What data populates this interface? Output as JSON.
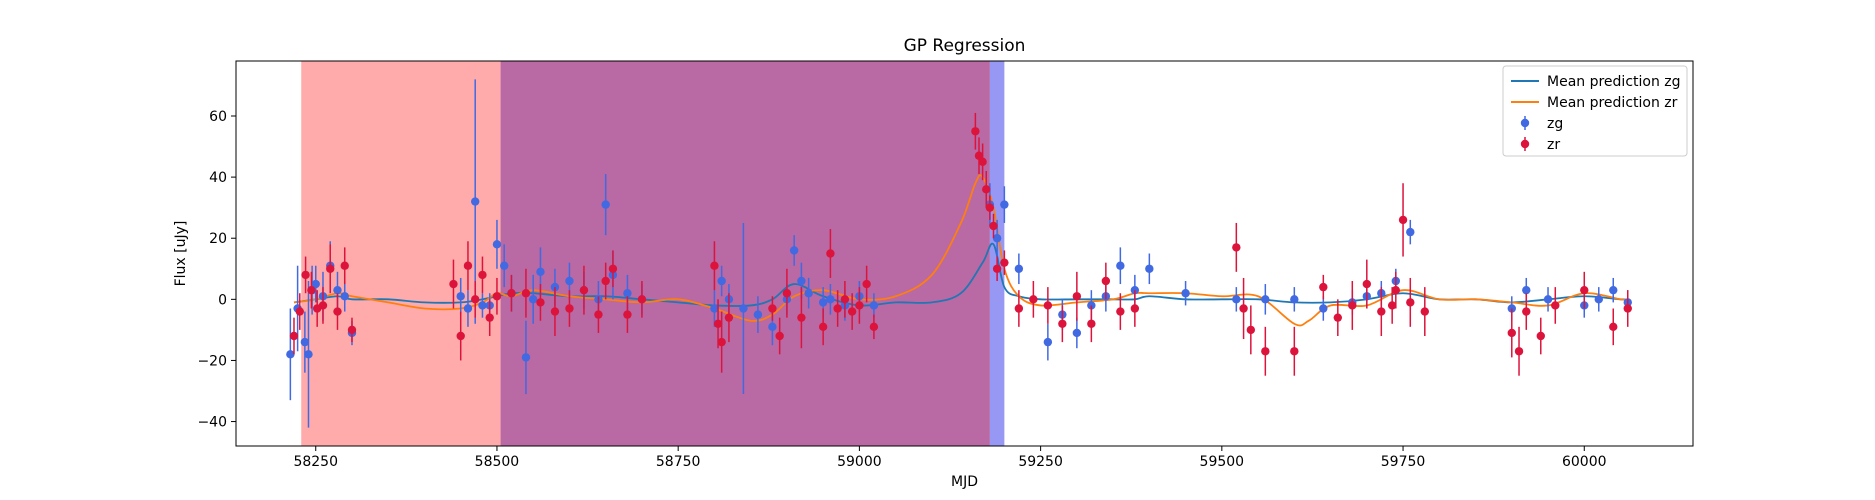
{
  "chart_data": {
    "type": "scatter",
    "title": "GP Regression",
    "xlabel": "MJD",
    "ylabel": "Flux [uJy]",
    "xlim": [
      58140,
      60150
    ],
    "ylim": [
      -48,
      78
    ],
    "xticks": [
      58250,
      58500,
      58750,
      59000,
      59250,
      59500,
      59750,
      60000
    ],
    "yticks": [
      -40,
      -20,
      0,
      20,
      40,
      60
    ],
    "grid": false,
    "legend_position": "top-right",
    "shaded_regions": [
      {
        "x": [
          58230,
          58505
        ],
        "color": "#ff6666",
        "opacity": 0.55
      },
      {
        "x": [
          58505,
          59180
        ],
        "color": "#9b2a7e",
        "opacity": 0.7
      },
      {
        "x": [
          59180,
          59200
        ],
        "color": "#6b6bf0",
        "opacity": 0.7
      }
    ],
    "series": [
      {
        "name": "Mean prediction zg",
        "kind": "line",
        "color": "#1f77b4",
        "x": [
          58220,
          58250,
          58280,
          58300,
          58350,
          58400,
          58450,
          58480,
          58500,
          58520,
          58550,
          58600,
          58650,
          58700,
          58750,
          58800,
          58850,
          58880,
          58910,
          58950,
          59000,
          59050,
          59100,
          59140,
          59170,
          59185,
          59200,
          59220,
          59250,
          59300,
          59350,
          59380,
          59400,
          59450,
          59500,
          59550,
          59600,
          59650,
          59700,
          59750,
          59800,
          59850,
          59900,
          59950,
          60000,
          60050,
          60060
        ],
        "values": [
          -1,
          0,
          1,
          0,
          0,
          -1,
          -1,
          0,
          1,
          2,
          2,
          1,
          1,
          0,
          -1,
          -2,
          -2,
          0,
          5,
          1,
          -2,
          -1,
          -1,
          2,
          12,
          18,
          4,
          1,
          0,
          0,
          0,
          0,
          1,
          0,
          0,
          0,
          -1,
          -1,
          0,
          2,
          0,
          0,
          -1,
          0,
          1,
          0,
          0
        ]
      },
      {
        "name": "Mean prediction zr",
        "kind": "line",
        "color": "#ff7f0e",
        "x": [
          58220,
          58250,
          58280,
          58300,
          58350,
          58400,
          58450,
          58480,
          58500,
          58520,
          58550,
          58600,
          58650,
          58700,
          58750,
          58800,
          58850,
          58880,
          58910,
          58950,
          59000,
          59050,
          59100,
          59140,
          59160,
          59170,
          59185,
          59200,
          59220,
          59250,
          59300,
          59350,
          59380,
          59400,
          59450,
          59500,
          59550,
          59600,
          59620,
          59650,
          59700,
          59750,
          59800,
          59850,
          59900,
          59950,
          60000,
          60050,
          60060
        ],
        "values": [
          -1,
          0,
          2,
          1,
          -1,
          -3,
          -3,
          -1,
          2,
          1,
          3,
          1,
          0,
          -1,
          0,
          -3,
          -7,
          -5,
          1,
          3,
          0,
          1,
          8,
          25,
          38,
          40,
          30,
          10,
          1,
          -2,
          -1,
          0,
          2,
          2,
          2,
          1,
          1,
          -8,
          -7,
          -2,
          -2,
          3,
          0,
          0,
          -1,
          -2,
          2,
          0,
          0
        ]
      },
      {
        "name": "zg",
        "kind": "errorbar",
        "color": "#4169e1",
        "x": [
          58215,
          58225,
          58235,
          58240,
          58245,
          58250,
          58260,
          58270,
          58280,
          58290,
          58300,
          58450,
          58460,
          58470,
          58480,
          58490,
          58500,
          58510,
          58520,
          58540,
          58550,
          58560,
          58580,
          58600,
          58620,
          58640,
          58650,
          58660,
          58680,
          58700,
          58800,
          58810,
          58820,
          58840,
          58860,
          58880,
          58900,
          58910,
          58920,
          58930,
          58950,
          58960,
          58980,
          59000,
          59020,
          59180,
          59190,
          59200,
          59220,
          59260,
          59280,
          59300,
          59320,
          59340,
          59360,
          59380,
          59400,
          59450,
          59520,
          59560,
          59600,
          59640,
          59680,
          59700,
          59720,
          59740,
          59760,
          59900,
          59920,
          59950,
          60000,
          60020,
          60040,
          60060
        ],
        "values": [
          -18,
          -3,
          -14,
          -18,
          3,
          5,
          1,
          11,
          3,
          1,
          -11,
          1,
          -3,
          32,
          -2,
          -2,
          18,
          11,
          2,
          -19,
          0,
          9,
          4,
          6,
          3,
          0,
          31,
          8,
          2,
          0,
          -3,
          6,
          0,
          -3,
          -5,
          -9,
          0,
          16,
          6,
          2,
          -1,
          0,
          -2,
          1,
          -2,
          31,
          20,
          31,
          10,
          -14,
          -5,
          -11,
          -2,
          1,
          11,
          3,
          10,
          2,
          0,
          0,
          0,
          -3,
          -1,
          1,
          2,
          6,
          22,
          -3,
          3,
          0,
          -2,
          0,
          3,
          -1
        ],
        "errors": [
          15,
          14,
          10,
          24,
          8,
          6,
          8,
          8,
          6,
          5,
          4,
          6,
          6,
          40,
          4,
          4,
          8,
          7,
          6,
          12,
          8,
          8,
          6,
          6,
          6,
          6,
          10,
          8,
          6,
          5,
          6,
          5,
          5,
          28,
          6,
          6,
          5,
          5,
          6,
          5,
          5,
          5,
          5,
          5,
          4,
          7,
          6,
          6,
          5,
          6,
          5,
          5,
          5,
          5,
          6,
          5,
          5,
          4,
          4,
          5,
          4,
          4,
          4,
          4,
          4,
          4,
          4,
          4,
          4,
          4,
          4,
          4,
          4,
          4
        ]
      },
      {
        "name": "zr",
        "kind": "errorbar",
        "color": "#dc143c",
        "x": [
          58220,
          58228,
          58236,
          58244,
          58252,
          58260,
          58270,
          58280,
          58290,
          58300,
          58440,
          58450,
          58460,
          58470,
          58480,
          58490,
          58500,
          58520,
          58540,
          58560,
          58580,
          58600,
          58620,
          58640,
          58650,
          58660,
          58680,
          58700,
          58800,
          58805,
          58810,
          58820,
          58880,
          58890,
          58900,
          58920,
          58950,
          58960,
          58970,
          58980,
          58990,
          59000,
          59010,
          59020,
          59160,
          59165,
          59170,
          59175,
          59180,
          59185,
          59190,
          59200,
          59220,
          59240,
          59260,
          59280,
          59300,
          59320,
          59340,
          59360,
          59380,
          59520,
          59530,
          59540,
          59560,
          59600,
          59640,
          59660,
          59680,
          59700,
          59720,
          59735,
          59740,
          59750,
          59760,
          59780,
          59900,
          59910,
          59920,
          59940,
          59960,
          60000,
          60040,
          60060
        ],
        "values": [
          -12,
          -4,
          8,
          3,
          -3,
          -2,
          10,
          -4,
          11,
          -10,
          5,
          -12,
          11,
          0,
          8,
          -6,
          1,
          2,
          2,
          -1,
          -4,
          -3,
          3,
          -5,
          6,
          10,
          -5,
          0,
          11,
          -8,
          -14,
          -6,
          -3,
          -12,
          2,
          -6,
          -9,
          15,
          -3,
          0,
          -4,
          -2,
          5,
          -9,
          55,
          47,
          45,
          36,
          30,
          24,
          10,
          12,
          -3,
          0,
          -2,
          -8,
          1,
          -8,
          6,
          -4,
          -3,
          17,
          -3,
          -10,
          -17,
          -17,
          4,
          -6,
          -2,
          5,
          -4,
          -2,
          3,
          26,
          -1,
          -4,
          -11,
          -17,
          -4,
          -12,
          -2,
          3,
          -9,
          -3
        ],
        "errors": [
          6,
          6,
          6,
          6,
          6,
          6,
          8,
          6,
          6,
          4,
          8,
          8,
          8,
          6,
          6,
          6,
          6,
          6,
          8,
          6,
          8,
          6,
          8,
          6,
          6,
          6,
          6,
          6,
          8,
          8,
          10,
          8,
          4,
          6,
          8,
          10,
          6,
          8,
          6,
          6,
          6,
          6,
          6,
          4,
          6,
          6,
          6,
          6,
          4,
          4,
          4,
          4,
          6,
          6,
          6,
          6,
          8,
          6,
          6,
          6,
          6,
          8,
          10,
          8,
          8,
          8,
          4,
          6,
          8,
          8,
          8,
          6,
          6,
          12,
          8,
          8,
          8,
          8,
          6,
          6,
          6,
          6,
          6,
          6
        ]
      }
    ]
  }
}
